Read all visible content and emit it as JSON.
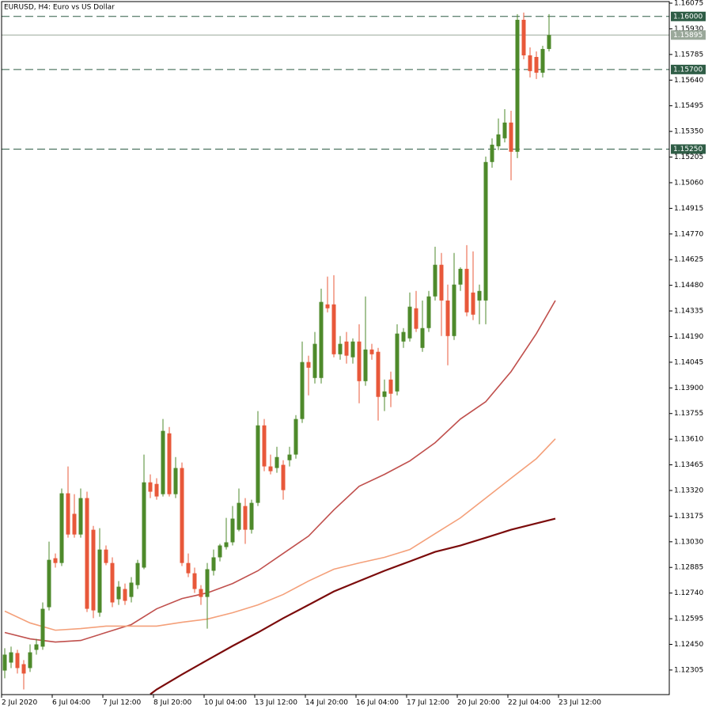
{
  "chart_data": {
    "type": "candlestick",
    "title": "EURUSD, H4:  Euro vs US Dollar",
    "categories": [
      "2 Jul 2020",
      null,
      null,
      null,
      null,
      null,
      null,
      null,
      "6 Jul 04:00",
      null,
      null,
      null,
      null,
      null,
      null,
      null,
      "7 Jul 12:00",
      null,
      null,
      null,
      null,
      null,
      null,
      null,
      "8 Jul 20:00",
      null,
      null,
      null,
      null,
      null,
      null,
      null,
      "10 Jul 04:00",
      null,
      null,
      null,
      null,
      null,
      null,
      null,
      "13 Jul 12:00",
      null,
      null,
      null,
      null,
      null,
      null,
      null,
      "14 Jul 20:00",
      null,
      null,
      null,
      null,
      null,
      null,
      null,
      "16 Jul 04:00",
      null,
      null,
      null,
      null,
      null,
      null,
      null,
      "17 Jul 12:00",
      null,
      null,
      null,
      null,
      null,
      null,
      null,
      "20 Jul 20:00",
      null,
      null,
      null,
      null,
      null,
      null,
      null,
      "22 Jul 04:00",
      null,
      null,
      null,
      null,
      null,
      null,
      null,
      "23 Jul 12:00"
    ],
    "open": [
      1.12302,
      1.12347,
      1.12401,
      1.12338,
      1.12316,
      1.12419,
      1.12437,
      1.1266,
      1.12937,
      1.1291,
      1.13304,
      1.13188,
      1.13071,
      1.13277,
      1.13098,
      1.12629,
      1.12986,
      1.1291,
      1.12705,
      1.12763,
      1.12718,
      1.12785,
      1.12884,
      1.13366,
      1.13357,
      1.13299,
      1.13643,
      1.13299,
      1.13447,
      1.1291,
      1.12852,
      1.12763,
      1.12718,
      1.12866,
      1.12942,
      1.13,
      1.13027,
      1.13098,
      1.13232,
      1.13098,
      1.1325,
      1.13688,
      1.13456,
      1.13447,
      1.13465,
      1.13491,
      1.13523,
      1.13724,
      1.14046,
      1.13956,
      1.13956,
      1.14372,
      1.14372,
      1.1409,
      1.14162,
      1.14073,
      1.14162,
      1.13938,
      1.14117,
      1.14104,
      1.13849,
      1.13947,
      1.1388,
      1.14162,
      1.1418,
      1.1435,
      1.14126,
      1.14238,
      1.14417,
      1.14596,
      1.14394,
      1.14193,
      1.14484,
      1.14573,
      1.14439,
      1.14394,
      1.14394,
      1.15177,
      1.15266,
      1.15311,
      1.154,
      1.15235,
      1.15981,
      1.1578,
      1.15771,
      1.15682,
      1.15816,
      null,
      null
    ],
    "high": [
      1.12428,
      1.12437,
      1.12419,
      1.12361,
      1.1245,
      1.12481,
      1.12687,
      1.13031,
      1.12964,
      1.13331,
      1.13456,
      1.13299,
      1.13331,
      1.13313,
      1.1312,
      1.13107,
      1.13009,
      1.12942,
      1.12808,
      1.12794,
      1.1283,
      1.12928,
      1.13523,
      1.13411,
      1.13389,
      1.13724,
      1.13679,
      1.13509,
      1.13478,
      1.12964,
      1.12884,
      1.12785,
      1.1291,
      1.12986,
      1.13018,
      1.13165,
      1.13232,
      1.13331,
      1.13277,
      1.13268,
      1.13769,
      1.13724,
      1.13523,
      1.13567,
      1.13491,
      1.13567,
      1.13746,
      1.14162,
      1.14082,
      1.14216,
      1.14461,
      1.14529,
      1.14537,
      1.14193,
      1.14216,
      1.1418,
      1.1426,
      1.14417,
      1.14149,
      1.14126,
      1.13947,
      1.13992,
      1.1426,
      1.14238,
      1.14439,
      1.14448,
      1.14394,
      1.14448,
      1.14698,
      1.14663,
      1.14484,
      1.14663,
      1.14582,
      1.14707,
      1.14672,
      1.14484,
      1.15208,
      1.15311,
      1.15423,
      1.15476,
      1.15467,
      1.16013,
      1.16022,
      1.15825,
      1.15802,
      1.15834,
      1.16013,
      null,
      null
    ],
    "low": [
      1.12258,
      1.12316,
      1.12285,
      1.12195,
      1.12294,
      1.12392,
      1.12419,
      1.12642,
      1.12884,
      1.12893,
      1.13053,
      1.13053,
      1.13053,
      1.12633,
      1.12598,
      1.12606,
      1.12897,
      1.1266,
      1.12673,
      1.12673,
      1.12687,
      1.12763,
      1.12875,
      1.13277,
      1.13268,
      1.13286,
      1.13286,
      1.13277,
      1.12893,
      1.1283,
      1.12741,
      1.12673,
      1.12539,
      1.12839,
      1.12919,
      1.12986,
      1.13009,
      1.13089,
      1.13018,
      1.13076,
      1.13232,
      1.13429,
      1.13411,
      1.1342,
      1.13268,
      1.13456,
      1.135,
      1.13702,
      1.13858,
      1.13925,
      1.13925,
      1.14327,
      1.14073,
      1.14059,
      1.14037,
      1.14037,
      1.13813,
      1.13912,
      1.14059,
      1.13715,
      1.13769,
      1.13791,
      1.13858,
      1.14126,
      1.14162,
      1.14216,
      1.14104,
      1.14216,
      1.14394,
      1.14193,
      1.14028,
      1.14171,
      1.14448,
      1.14305,
      1.14283,
      1.1426,
      1.1426,
      1.15145,
      1.15244,
      1.15288,
      1.15074,
      1.15199,
      1.15758,
      1.15655,
      1.15646,
      1.15655,
      1.15802,
      null,
      null
    ],
    "close": [
      1.12392,
      1.12405,
      1.12316,
      1.12285,
      1.12405,
      1.1245,
      1.12651,
      1.12928,
      1.1291,
      1.13304,
      1.13071,
      1.13071,
      1.13277,
      1.12651,
      1.12642,
      1.12986,
      1.1291,
      1.12687,
      1.12776,
      1.12696,
      1.12799,
      1.1291,
      1.13366,
      1.13313,
      1.13286,
      1.13657,
      1.13299,
      1.13447,
      1.1291,
      1.12852,
      1.12763,
      1.12718,
      1.12875,
      1.12942,
      1.13009,
      1.13027,
      1.13161,
      1.1325,
      1.13098,
      1.1325,
      1.13688,
      1.13456,
      1.13429,
      1.13509,
      1.13322,
      1.13523,
      1.13724,
      1.14046,
      1.14014,
      1.14149,
      1.14386,
      1.1435,
      1.1409,
      1.14149,
      1.14082,
      1.14162,
      1.13938,
      1.14117,
      1.1409,
      1.13849,
      1.1388,
      1.13867,
      1.14207,
      1.14216,
      1.14359,
      1.14234,
      1.14238,
      1.14417,
      1.14596,
      1.14394,
      1.14193,
      1.14484,
      1.14573,
      1.14327,
      1.14314,
      1.14448,
      1.15177,
      1.15275,
      1.15333,
      1.154,
      1.15235,
      1.15981,
      1.1578,
      1.15691,
      1.15682,
      1.15816,
      1.15895,
      null,
      null
    ],
    "up_color": "#4e8a2b",
    "down_color": "#e8583a",
    "series": [
      {
        "color": "#c0504d",
        "x": [
          0,
          4,
          8,
          12,
          16,
          20,
          24,
          28,
          32,
          36,
          40,
          44,
          48,
          52,
          56,
          60,
          64,
          68,
          72,
          76,
          80,
          84,
          87
        ],
        "values": [
          1.12517,
          1.12481,
          1.12463,
          1.12472,
          1.12517,
          1.12562,
          1.12651,
          1.12709,
          1.12741,
          1.12794,
          1.12866,
          1.12964,
          1.13062,
          1.1321,
          1.13344,
          1.13411,
          1.13487,
          1.1359,
          1.13724,
          1.13822,
          1.13992,
          1.14207,
          1.14394
        ]
      },
      {
        "color": "#f4a07a",
        "x": [
          0,
          4,
          8,
          12,
          16,
          20,
          24,
          28,
          32,
          36,
          40,
          44,
          48,
          52,
          56,
          60,
          64,
          68,
          72,
          76,
          80,
          84,
          87
        ],
        "values": [
          1.12638,
          1.12571,
          1.1253,
          1.12539,
          1.12553,
          1.12553,
          1.12553,
          1.12575,
          1.12593,
          1.12629,
          1.12673,
          1.12732,
          1.12808,
          1.12875,
          1.1291,
          1.12942,
          1.12986,
          1.13076,
          1.13165,
          1.13277,
          1.13389,
          1.135,
          1.13612
        ]
      },
      {
        "color": "#7b0b0b",
        "x": [
          23,
          24,
          28,
          32,
          36,
          40,
          44,
          48,
          52,
          56,
          60,
          64,
          68,
          72,
          76,
          80,
          84,
          87
        ],
        "values": [
          1.12168,
          1.12195,
          1.1228,
          1.12361,
          1.12441,
          1.12517,
          1.12598,
          1.12673,
          1.12749,
          1.12808,
          1.12866,
          1.12919,
          1.12973,
          1.13009,
          1.13053,
          1.13098,
          1.13134,
          1.13161
        ]
      }
    ],
    "levels": [
      {
        "value": 1.16,
        "label": "1.16000",
        "color": "#2f5d46",
        "dashed": true
      },
      {
        "value": 1.15895,
        "label": "1.15895",
        "color": "#9aa89a",
        "dashed": false
      },
      {
        "value": 1.157,
        "label": "1.15700",
        "color": "#2f5d46",
        "dashed": true
      },
      {
        "value": 1.1525,
        "label": "1.15250",
        "color": "#2f5d46",
        "dashed": true
      }
    ],
    "ylim": [
      1.12166,
      1.16084
    ],
    "yticks": [
      1.16075,
      {
        "value": 1.1593,
        "label": "1.15930"
      },
      1.15785,
      {
        "value": 1.1564,
        "label": "1.15640"
      },
      1.15495,
      {
        "value": 1.1535,
        "label": "1.15350"
      },
      1.15205,
      {
        "value": 1.1506,
        "label": "1.15060"
      },
      1.14915,
      {
        "value": 1.1477,
        "label": "1.14770"
      },
      1.14625,
      {
        "value": 1.1448,
        "label": "1.14480"
      },
      1.14335,
      {
        "value": 1.1419,
        "label": "1.14190"
      },
      1.14045,
      {
        "value": 1.139,
        "label": "1.13900"
      },
      1.13755,
      {
        "value": 1.1361,
        "label": "1.13610"
      },
      1.13465,
      {
        "value": 1.1332,
        "label": "1.13320"
      },
      1.13175,
      {
        "value": 1.1303,
        "label": "1.13030"
      },
      1.12885,
      {
        "value": 1.1274,
        "label": "1.12740"
      },
      1.12595,
      {
        "value": 1.1245,
        "label": "1.12450"
      },
      1.12305
    ]
  }
}
